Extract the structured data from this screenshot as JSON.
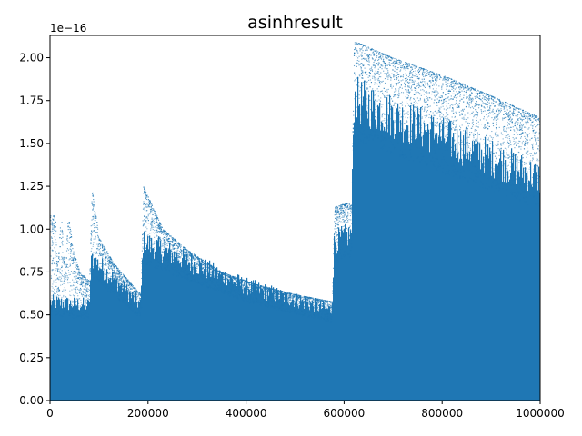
{
  "chart_data": {
    "type": "scatter",
    "title": "asinhresult",
    "xlabel": "",
    "ylabel": "",
    "y_offset_label": "1e−16",
    "xlim": [
      0,
      1000000
    ],
    "ylim": [
      0,
      2.13
    ],
    "x_ticks": [
      0,
      200000,
      400000,
      600000,
      800000,
      1000000
    ],
    "x_tick_labels": [
      "0",
      "200000",
      "400000",
      "600000",
      "800000",
      "1000000"
    ],
    "y_ticks": [
      0.0,
      0.25,
      0.5,
      0.75,
      1.0,
      1.25,
      1.5,
      1.75,
      2.0
    ],
    "y_tick_labels": [
      "0.00",
      "0.25",
      "0.50",
      "0.75",
      "1.00",
      "1.25",
      "1.50",
      "1.75",
      "2.00"
    ],
    "grid": false,
    "series_color": "#1f77b4",
    "series": [
      {
        "upper_envelope": {
          "x": [
            0,
            10000,
            15000,
            22000,
            30000,
            37000,
            45000,
            60000,
            80000,
            85000,
            100000,
            130000,
            160000,
            185000,
            190000,
            230000,
            280000,
            350000,
            420000,
            500000,
            575000,
            580000,
            600000,
            615000,
            620000,
            700000,
            800000,
            900000,
            1000000
          ],
          "y": [
            1.08,
            1.08,
            0.75,
            1.1,
            0.75,
            1.11,
            0.9,
            0.75,
            0.7,
            1.24,
            0.95,
            0.8,
            0.7,
            0.62,
            1.25,
            1.0,
            0.88,
            0.75,
            0.68,
            0.62,
            0.58,
            1.13,
            1.15,
            1.15,
            2.1,
            2.0,
            1.9,
            1.78,
            1.65
          ]
        },
        "dense_fill_top": {
          "x": [
            0,
            80000,
            85000,
            185000,
            190000,
            400000,
            575000,
            580000,
            615000,
            620000,
            1000000
          ],
          "y": [
            0.62,
            0.6,
            0.9,
            0.6,
            1.0,
            0.72,
            0.57,
            1.0,
            1.05,
            1.9,
            1.4
          ]
        }
      }
    ]
  }
}
